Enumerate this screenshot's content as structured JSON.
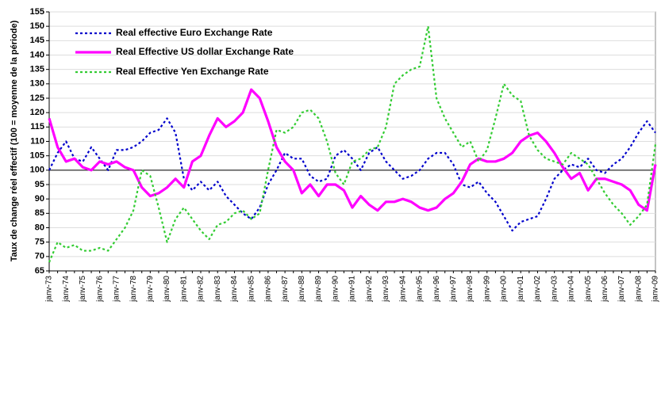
{
  "chart_data": {
    "type": "line",
    "y_label": "Taux de change réel effectif (100 = moyenne de la période)",
    "categories": [
      "janv-73",
      null,
      "janv-74",
      null,
      "janv-75",
      null,
      "janv-76",
      null,
      "janv-77",
      null,
      "janv-78",
      null,
      "janv-79",
      null,
      "janv-80",
      null,
      "janv-81",
      null,
      "janv-82",
      null,
      "janv-83",
      null,
      "janv-84",
      null,
      "janv-85",
      null,
      "janv-86",
      null,
      "janv-87",
      null,
      "janv-88",
      null,
      "janv-89",
      null,
      "janv-90",
      null,
      "janv-91",
      null,
      "janv-92",
      null,
      "janv-93",
      null,
      "janv-94",
      null,
      "janv-95",
      null,
      "janv-96",
      null,
      "janv-97",
      null,
      "janv-98",
      null,
      "janv-99",
      null,
      "janv-00",
      null,
      "janv-01",
      null,
      "janv-02",
      null,
      "janv-03",
      null,
      "janv-04",
      null,
      "janv-05",
      null,
      "janv-06",
      null,
      "janv-07",
      null,
      "janv-08",
      null,
      "janv-09"
    ],
    "series": [
      {
        "name": "Real effective Euro Exchange Rate",
        "color": "#0000cc",
        "style": "dotted",
        "values": [
          100,
          106,
          110,
          104,
          103,
          108,
          104,
          100,
          107,
          107,
          108,
          110,
          113,
          114,
          118,
          113,
          97,
          93,
          96,
          93,
          96,
          91,
          88,
          85,
          83,
          87,
          95,
          100,
          106,
          104,
          104,
          98,
          96,
          97,
          105,
          107,
          104,
          100,
          106,
          108,
          103,
          100,
          97,
          98,
          100,
          104,
          106,
          106,
          102,
          95,
          94,
          96,
          92,
          89,
          84,
          79,
          82,
          83,
          84,
          90,
          97,
          100,
          102,
          101,
          104,
          100,
          99,
          102,
          104,
          108,
          113,
          117,
          113
        ]
      },
      {
        "name": "Real Effective US dollar Exchange Rate",
        "color": "#ff00ff",
        "style": "solid",
        "values": [
          118,
          108,
          103,
          104,
          101,
          100,
          103,
          102,
          103,
          101,
          100,
          94,
          91,
          92,
          94,
          97,
          94,
          103,
          105,
          112,
          118,
          115,
          117,
          120,
          128,
          125,
          117,
          108,
          103,
          100,
          92,
          95,
          91,
          95,
          95,
          93,
          87,
          91,
          88,
          86,
          89,
          89,
          90,
          89,
          87,
          86,
          87,
          90,
          92,
          96,
          102,
          104,
          103,
          103,
          104,
          106,
          110,
          112,
          113,
          110,
          106,
          101,
          97,
          99,
          93,
          97,
          97,
          96,
          95,
          93,
          88,
          86,
          102
        ]
      },
      {
        "name": "Real Effective Yen Exchange Rate",
        "color": "#33cc33",
        "style": "dotted",
        "values": [
          68,
          75,
          73,
          74,
          72,
          72,
          73,
          72,
          76,
          80,
          86,
          100,
          98,
          87,
          75,
          83,
          87,
          83,
          79,
          76,
          81,
          82,
          85,
          86,
          83,
          85,
          100,
          114,
          113,
          115,
          120,
          121,
          118,
          110,
          99,
          95,
          103,
          104,
          107,
          108,
          115,
          130,
          133,
          135,
          136,
          150,
          125,
          118,
          113,
          108,
          110,
          103,
          107,
          118,
          130,
          126,
          124,
          112,
          107,
          104,
          103,
          102,
          106,
          104,
          102,
          97,
          92,
          88,
          85,
          81,
          84,
          88,
          109
        ]
      }
    ],
    "ylim": [
      65,
      155
    ],
    "yticks": [
      65,
      70,
      75,
      80,
      85,
      90,
      95,
      100,
      105,
      110,
      115,
      120,
      125,
      130,
      135,
      140,
      145,
      150,
      155
    ],
    "reference_line": 100,
    "grid": true,
    "legend": "top-left"
  }
}
